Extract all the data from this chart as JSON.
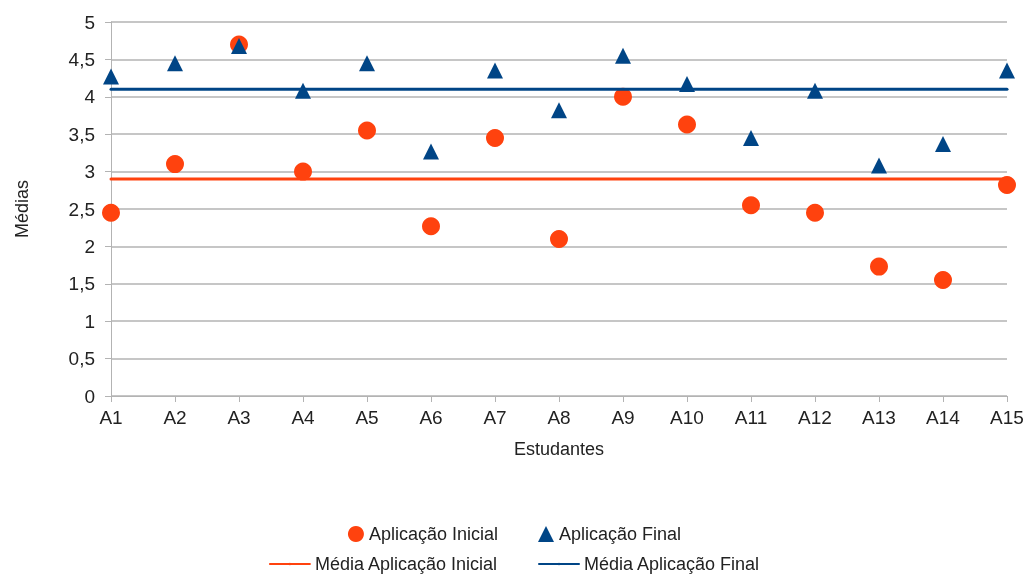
{
  "chart_data": {
    "type": "scatter",
    "xlabel": "Estudantes",
    "ylabel": "Médias",
    "categories": [
      "A1",
      "A2",
      "A3",
      "A4",
      "A5",
      "A6",
      "A7",
      "A8",
      "A9",
      "A10",
      "A11",
      "A12",
      "A13",
      "A14",
      "A15"
    ],
    "series": [
      {
        "name": "Aplicação Inicial",
        "marker": "circle",
        "color": "#ff420e",
        "values": [
          2.45,
          3.1,
          4.7,
          3.0,
          3.55,
          2.27,
          3.45,
          2.1,
          4.0,
          3.63,
          2.55,
          2.45,
          1.73,
          1.55,
          2.82
        ]
      },
      {
        "name": "Aplicação Final",
        "marker": "triangle",
        "color": "#004586",
        "values": [
          4.27,
          4.45,
          4.68,
          4.08,
          4.45,
          3.27,
          4.35,
          3.82,
          4.55,
          4.17,
          3.45,
          4.08,
          3.08,
          3.37,
          4.35
        ]
      },
      {
        "name": "Média Aplicação Inicial",
        "type": "line",
        "marker": "none",
        "color": "#ff420e",
        "values": [
          2.9,
          2.9,
          2.9,
          2.9,
          2.9,
          2.9,
          2.9,
          2.9,
          2.9,
          2.9,
          2.9,
          2.9,
          2.9,
          2.9,
          2.9
        ]
      },
      {
        "name": "Média Aplicação Final",
        "type": "line",
        "marker": "none",
        "color": "#004586",
        "values": [
          4.1,
          4.1,
          4.1,
          4.1,
          4.1,
          4.1,
          4.1,
          4.1,
          4.1,
          4.1,
          4.1,
          4.1,
          4.1,
          4.1,
          4.1
        ]
      }
    ],
    "ylim": [
      0,
      5
    ],
    "yticks": [
      0,
      {
        "value": 0.5,
        "label": "0,5"
      },
      1,
      {
        "value": 1.5,
        "label": "1,5"
      },
      2,
      {
        "value": 2.5,
        "label": "2,5"
      },
      3,
      {
        "value": 3.5,
        "label": "3,5"
      },
      4,
      {
        "value": 4.5,
        "label": "4,5"
      },
      5
    ],
    "grid": "y",
    "legend": "bottom"
  }
}
